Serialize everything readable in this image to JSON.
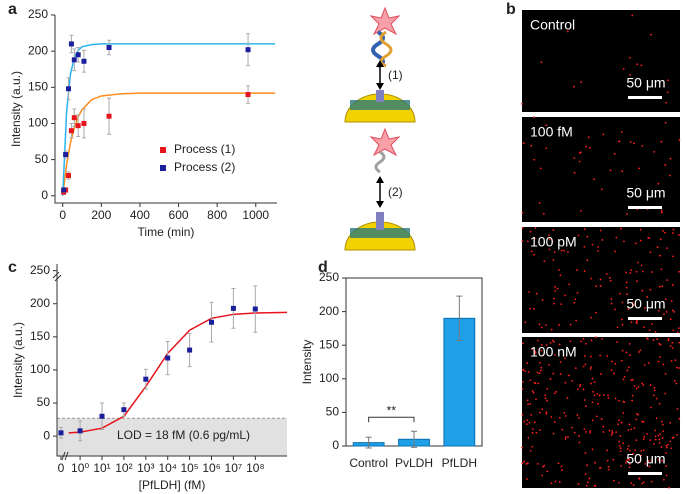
{
  "panels": {
    "a": "a",
    "b": "b",
    "c": "c",
    "d": "d"
  },
  "diagram": {
    "step1": "(1)",
    "step2": "(2)"
  },
  "microscopy": [
    {
      "label": "Control",
      "scale": "50 μm"
    },
    {
      "label": "100 fM",
      "scale": "50 μm"
    },
    {
      "label": "100 pM",
      "scale": "50 μm"
    },
    {
      "label": "100 nM",
      "scale": "50 μm"
    }
  ],
  "chart_data": [
    {
      "type": "scatter",
      "xlabel": "Time (min)",
      "ylabel": "Intensity (a.u.)",
      "xlim": [
        -40,
        1110
      ],
      "ylim": [
        -10,
        250
      ],
      "xticks": [
        0,
        200,
        400,
        600,
        800,
        1000
      ],
      "yticks": [
        0,
        50,
        100,
        150,
        200,
        250
      ],
      "x": [
        5,
        15,
        30,
        45,
        60,
        80,
        110,
        240,
        960
      ],
      "series": [
        {
          "name": "Process (1)",
          "color": "#e8141c",
          "values": [
            5,
            8,
            28,
            90,
            108,
            97,
            100,
            110,
            140
          ],
          "errors": [
            3,
            3,
            5,
            10,
            12,
            15,
            20,
            25,
            12
          ]
        },
        {
          "name": "Process (2)",
          "color": "#1b1f9c",
          "values": [
            8,
            57,
            148,
            210,
            188,
            195,
            186,
            205,
            202
          ],
          "errors": [
            3,
            5,
            15,
            12,
            15,
            10,
            15,
            10,
            22
          ]
        }
      ],
      "fits": [
        {
          "color": "#ff8c1a",
          "x": [
            0,
            20,
            40,
            60,
            80,
            100,
            150,
            200,
            300,
            400,
            600,
            800,
            1100
          ],
          "values": [
            0,
            43,
            73,
            94,
            109,
            119,
            133,
            138,
            141,
            142,
            142,
            142,
            142
          ]
        },
        {
          "color": "#2ab4ef",
          "x": [
            0,
            20,
            40,
            60,
            80,
            100,
            150,
            200,
            300,
            1100
          ],
          "values": [
            0,
            116,
            168,
            191,
            201,
            206,
            209,
            210,
            210,
            210
          ]
        }
      ]
    },
    {
      "type": "logscatter",
      "xlabel": "[PfLDH] (fM)",
      "ylabel": "Intensity (a.u.)",
      "xscale": "log",
      "xlim": [
        0.28,
        2800000000
      ],
      "ylim": [
        -30,
        260
      ],
      "xticks": [
        0,
        {
          "value": 1,
          "label": "10⁰"
        },
        {
          "value": 10,
          "label": "10¹"
        },
        {
          "value": 100,
          "label": "10²"
        },
        {
          "value": 1000,
          "label": "10³"
        },
        {
          "value": 10000,
          "label": "10⁴"
        },
        {
          "value": 100000,
          "label": "10⁵"
        },
        {
          "value": 1000000,
          "label": "10⁶"
        },
        {
          "value": 10000000,
          "label": "10⁷"
        },
        {
          "value": 100000000,
          "label": "10⁸"
        }
      ],
      "yticks": [
        0,
        50,
        100,
        150,
        200,
        250
      ],
      "x": [
        0,
        1,
        10,
        100,
        1000,
        10000,
        100000,
        1000000,
        10000000,
        100000000
      ],
      "series": [
        {
          "color": "#1b1f9c",
          "values": [
            5,
            8,
            30,
            40,
            86,
            118,
            130,
            172,
            193,
            192
          ],
          "errors": [
            8,
            15,
            20,
            10,
            15,
            25,
            25,
            30,
            30,
            35
          ]
        }
      ],
      "fits": [
        {
          "color": "#e8141c",
          "x": [
            0.3,
            1,
            10,
            100,
            1000,
            10000,
            100000,
            1000000,
            10000000,
            100000000,
            2800000000
          ],
          "values": [
            5,
            6,
            12,
            30,
            75,
            125,
            160,
            178,
            184,
            186,
            187
          ]
        }
      ],
      "band": {
        "top": 27,
        "label": "LOD = 18 fM (0.6 pg/mL)"
      }
    },
    {
      "type": "bar",
      "ylabel": "Intensity",
      "ylim": [
        0,
        250
      ],
      "yticks": [
        0,
        50,
        100,
        150,
        200,
        250
      ],
      "categories": [
        "Control",
        "PvLDH",
        "PfLDH"
      ],
      "values": [
        5,
        10,
        190
      ],
      "errors": [
        8,
        12,
        33
      ],
      "color": "#1e9fe8",
      "annotation": "**"
    }
  ]
}
